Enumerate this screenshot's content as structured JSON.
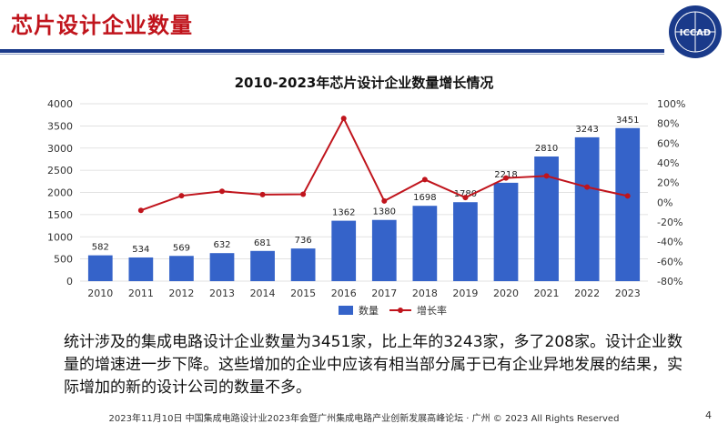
{
  "slide": {
    "title": "芯片设计企业数量",
    "page_number": "4",
    "footer": "2023年11月10日 中国集成电路设计业2023年会暨广州集成电路产业创新发展高峰论坛 · 广州 © 2023 All Rights Reserved",
    "logo_text": "ICCAD",
    "summary": "统计涉及的集成电路设计企业数量为3451家，比上年的3243家，多了208家。设计企业数量的增速进一步下降。这些增加的企业中应该有相当部分属于已有企业异地发展的结果，实际增加的新的设计公司的数量不多。"
  },
  "chart_data": {
    "type": "bar",
    "title": "2010-2023年芯片设计企业数量增长情况",
    "categories": [
      "2010",
      "2011",
      "2012",
      "2013",
      "2014",
      "2015",
      "2016",
      "2017",
      "2018",
      "2019",
      "2020",
      "2021",
      "2022",
      "2023"
    ],
    "series": [
      {
        "name": "数量",
        "type": "bar",
        "axis": "left",
        "values": [
          582,
          534,
          569,
          632,
          681,
          736,
          1362,
          1380,
          1698,
          1780,
          2218,
          2810,
          3243,
          3451
        ],
        "color": "#3563c9"
      },
      {
        "name": "增长率",
        "type": "line",
        "axis": "right",
        "values": [
          null,
          -8.2,
          6.6,
          11.1,
          7.8,
          8.1,
          85.1,
          1.3,
          23.0,
          4.8,
          24.6,
          26.7,
          15.4,
          6.4
        ],
        "color": "#c0141c"
      }
    ],
    "left_axis": {
      "min": 0,
      "max": 4000,
      "ticks": [
        "0",
        "500",
        "1000",
        "1500",
        "2000",
        "2500",
        "3000",
        "3500",
        "4000"
      ]
    },
    "right_axis": {
      "min": -80,
      "max": 100,
      "ticks": [
        "-80%",
        "-60%",
        "-40%",
        "-20%",
        "0%",
        "20%",
        "40%",
        "60%",
        "80%",
        "100%"
      ]
    },
    "grid": true,
    "legend_placement": "bottom"
  }
}
